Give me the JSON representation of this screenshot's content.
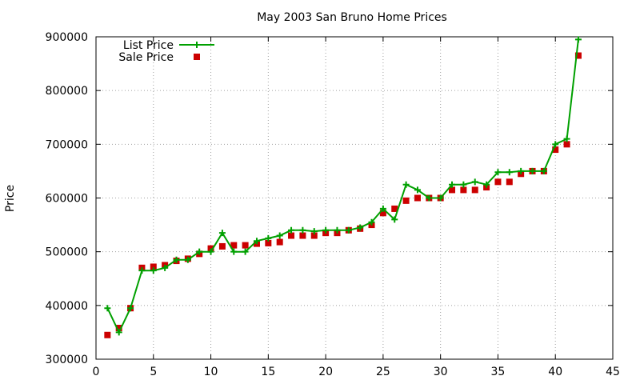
{
  "chart_data": {
    "type": "line",
    "title": "May 2003 San Bruno Home Prices",
    "xlabel": "",
    "ylabel": "Price",
    "xlim": [
      0,
      45
    ],
    "ylim": [
      300000,
      900000
    ],
    "x_ticks": [
      0,
      5,
      10,
      15,
      20,
      25,
      30,
      35,
      40,
      45
    ],
    "y_ticks": [
      300000,
      400000,
      500000,
      600000,
      700000,
      800000,
      900000
    ],
    "grid": true,
    "legend_position": "top-left",
    "x": [
      1,
      2,
      3,
      4,
      5,
      6,
      7,
      8,
      9,
      10,
      11,
      12,
      13,
      14,
      15,
      16,
      17,
      18,
      19,
      20,
      21,
      22,
      23,
      24,
      25,
      26,
      27,
      28,
      29,
      30,
      31,
      32,
      33,
      34,
      35,
      36,
      37,
      38,
      39,
      40,
      41,
      42
    ],
    "series": [
      {
        "name": "List Price",
        "style": "linespoints",
        "color": "#00a000",
        "marker": "plus",
        "values": [
          395000,
          350000,
          395000,
          465000,
          465000,
          470000,
          485000,
          485000,
          500000,
          500000,
          535000,
          500000,
          500000,
          520000,
          525000,
          530000,
          540000,
          540000,
          538000,
          540000,
          540000,
          540000,
          545000,
          555000,
          580000,
          560000,
          625000,
          615000,
          600000,
          600000,
          625000,
          625000,
          630000,
          625000,
          648000,
          648000,
          650000,
          650000,
          650000,
          700000,
          710000,
          895000
        ]
      },
      {
        "name": "Sale Price",
        "style": "points",
        "color": "#cc0000",
        "marker": "square",
        "values": [
          345000,
          358000,
          395000,
          470000,
          472000,
          475000,
          483000,
          487000,
          496000,
          506000,
          510000,
          512000,
          512000,
          515000,
          516000,
          518000,
          530000,
          530000,
          530000,
          535000,
          535000,
          540000,
          543000,
          550000,
          572000,
          580000,
          595000,
          600000,
          600000,
          600000,
          615000,
          615000,
          615000,
          620000,
          630000,
          630000,
          645000,
          650000,
          650000,
          690000,
          700000,
          865000
        ]
      }
    ]
  }
}
